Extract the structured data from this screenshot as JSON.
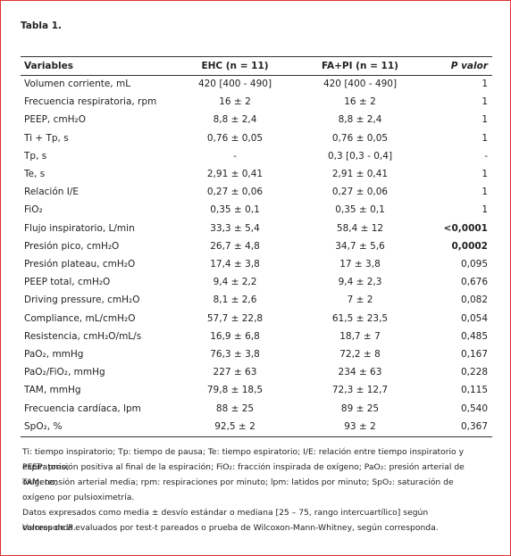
{
  "title": "Tabla 1.",
  "table": {
    "header": [
      "Variables",
      "EHC (n = 11)",
      "FA+PI (n = 11)",
      "P valor"
    ],
    "rows": [
      [
        "Volumen corriente, mL",
        "420 [400 - 490]",
        "420 [400 - 490]",
        "1"
      ],
      [
        "Frecuencia respiratoria, rpm",
        "16 ± 2",
        "16 ± 2",
        "1"
      ],
      [
        "PEEP, cmH₂O",
        "8,8 ± 2,4",
        "8,8 ± 2,4",
        "1"
      ],
      [
        "Ti + Tp, s",
        "0,76 ± 0,05",
        "0,76 ± 0,05",
        "1"
      ],
      [
        "Tp, s",
        "-",
        "0,3 [0,3 - 0,4]",
        "-"
      ],
      [
        "Te, s",
        "2,91 ± 0,41",
        "2,91 ± 0,41",
        "1"
      ],
      [
        "Relación I/E",
        "0,27 ± 0,06",
        "0,27 ± 0,06",
        "1"
      ],
      [
        "FiO₂",
        "0,35 ± 0,1",
        "0,35 ± 0,1",
        "1"
      ],
      [
        "Flujo inspiratorio, L/min",
        "33,3 ± 5,4",
        "58,4 ± 12",
        "<0,0001"
      ],
      [
        "Presión pico, cmH₂O",
        "26,7 ± 4,8",
        "34,7 ± 5,6",
        "0,0002"
      ],
      [
        "Presión plateau, cmH₂O",
        "17,4 ± 3,8",
        "17 ± 3,8",
        "0,095"
      ],
      [
        "PEEP total, cmH₂O",
        "9,4 ± 2,2",
        "9,4 ± 2,3",
        "0,676"
      ],
      [
        "Driving pressure, cmH₂O",
        "8,1 ± 2,6",
        "7 ± 2",
        "0,082"
      ],
      [
        "Compliance, mL/cmH₂O",
        "57,7 ± 22,8",
        "61,5 ± 23,5",
        "0,054"
      ],
      [
        "Resistencia, cmH₂O/mL/s",
        "16,9 ± 6,8",
        "18,7 ± 7",
        "0,485"
      ],
      [
        "PaO₂, mmHg",
        "76,3 ± 3,8",
        "72,2 ± 8",
        "0,167"
      ],
      [
        "PaO₂/FiO₂, mmHg",
        "227 ± 63",
        "234 ± 63",
        "0,228"
      ],
      [
        "TAM, mmHg",
        "79,8 ± 18,5",
        "72,3 ± 12,7",
        "0,115"
      ],
      [
        "Frecuencia cardíaca, lpm",
        "88 ± 25",
        "89 ± 25",
        "0,540"
      ],
      [
        "SpO₂, %",
        "92,5 ± 2",
        "93 ± 2",
        "0,367"
      ]
    ],
    "bold_p_rows": [
      8,
      9
    ]
  },
  "notes": [
    [
      "Ti: tiempo inspiratorio; Tp: tiempo de pausa; Te: tiempo espiratorio; I/E: relación entre tiempo inspiratorio y espiratorio;"
    ],
    [
      "PEEP: presión positiva al final de la espiración; FiO₂: fracción inspirada de oxígeno; PaO₂: presión arterial de oxígeno;"
    ],
    [
      "TAM: tensión arterial media; rpm: respiraciones por minuto; lpm: latidos por minuto; SpO₂: saturación de oxígeno por pulsioximetría."
    ],
    [
      "Datos expresados como media ± desvío estándar o mediana [25 – 75, rango intercuartílico] según corresponda."
    ],
    [
      "Valores de ",
      "P",
      " evaluados por test-t pareados o prueba de Wilcoxon-Mann-Whitney, según corresponda."
    ]
  ]
}
